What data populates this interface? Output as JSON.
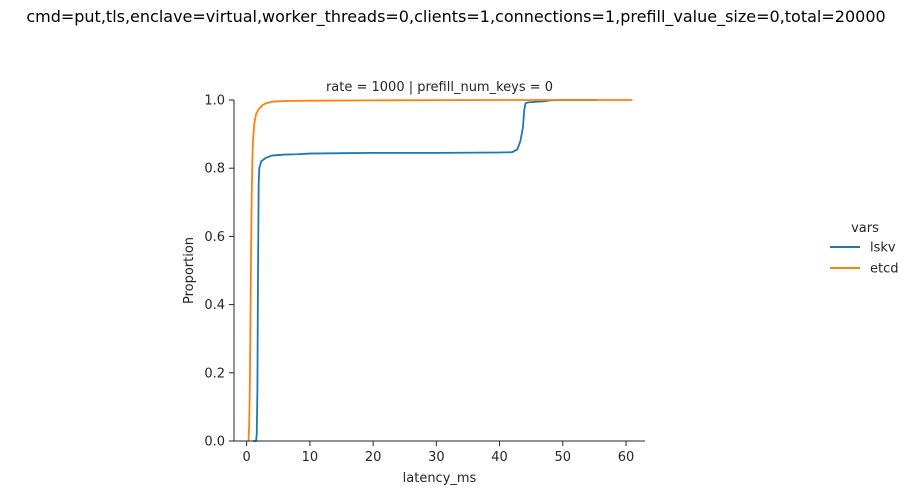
{
  "figure": {
    "suptitle": "cmd=put,tls,enclave=virtual,worker_threads=0,clients=1,connections=1,prefill_value_size=0,total=20000"
  },
  "chart_data": {
    "type": "line",
    "title": "rate = 1000 | prefill_num_keys = 0",
    "xlabel": "latency_ms",
    "ylabel": "Proportion",
    "xlim": [
      -2,
      63
    ],
    "ylim": [
      0,
      1
    ],
    "xticks": [
      0,
      10,
      20,
      30,
      40,
      50,
      60
    ],
    "yticks": [
      0.0,
      0.2,
      0.4,
      0.6,
      0.8,
      1.0
    ],
    "grid": false,
    "legend": {
      "title": "vars",
      "placement": "right"
    },
    "series": [
      {
        "name": "lskv",
        "color": "#1f77b4",
        "points": [
          [
            1.0,
            0
          ],
          [
            1.5,
            0
          ],
          [
            1.6,
            0.02
          ],
          [
            1.7,
            0.15
          ],
          [
            1.8,
            0.5
          ],
          [
            1.9,
            0.75
          ],
          [
            2.0,
            0.8
          ],
          [
            2.3,
            0.82
          ],
          [
            3.0,
            0.83
          ],
          [
            4.0,
            0.837
          ],
          [
            6.0,
            0.84
          ],
          [
            8.0,
            0.841
          ],
          [
            10.0,
            0.843
          ],
          [
            15.0,
            0.844
          ],
          [
            20.0,
            0.845
          ],
          [
            30.0,
            0.845
          ],
          [
            40.0,
            0.846
          ],
          [
            42.0,
            0.847
          ],
          [
            42.8,
            0.855
          ],
          [
            43.3,
            0.88
          ],
          [
            43.7,
            0.92
          ],
          [
            43.9,
            0.97
          ],
          [
            44.1,
            0.99
          ],
          [
            44.5,
            0.993
          ],
          [
            46.0,
            0.995
          ],
          [
            47.0,
            0.996
          ],
          [
            48.0,
            0.999
          ],
          [
            50.0,
            1.0
          ],
          [
            55.5,
            1.0
          ]
        ]
      },
      {
        "name": "etcd",
        "color": "#ff7f0e",
        "points": [
          [
            0.3,
            0
          ],
          [
            0.4,
            0.05
          ],
          [
            0.5,
            0.15
          ],
          [
            0.6,
            0.35
          ],
          [
            0.7,
            0.55
          ],
          [
            0.8,
            0.72
          ],
          [
            0.9,
            0.82
          ],
          [
            1.0,
            0.88
          ],
          [
            1.2,
            0.93
          ],
          [
            1.5,
            0.96
          ],
          [
            2.0,
            0.975
          ],
          [
            2.5,
            0.985
          ],
          [
            3.0,
            0.99
          ],
          [
            4.0,
            0.995
          ],
          [
            6.0,
            0.997
          ],
          [
            10.0,
            0.998
          ],
          [
            20.0,
            0.999
          ],
          [
            40.0,
            1.0
          ],
          [
            61.0,
            1.0
          ]
        ]
      }
    ]
  }
}
